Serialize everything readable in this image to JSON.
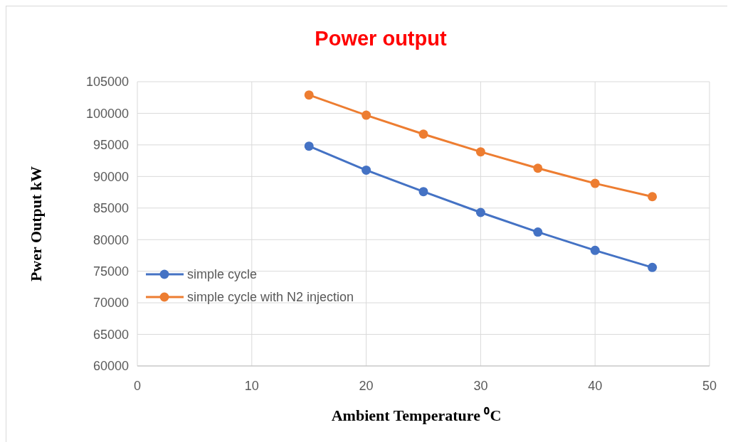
{
  "chart_data": {
    "type": "line",
    "title": "Power output",
    "xlabel": "Ambient Temperature ⁰C",
    "ylabel": "Pwer Output kW",
    "x": [
      15,
      20,
      25,
      30,
      35,
      40,
      45
    ],
    "series": [
      {
        "name": "simple cycle",
        "color": "#4472c4",
        "values": [
          94800,
          91000,
          87600,
          84300,
          81200,
          78300,
          75600
        ]
      },
      {
        "name": "simple cycle with N2 injection",
        "color": "#ed7d31",
        "values": [
          102900,
          99700,
          96700,
          93900,
          91300,
          88900,
          86800
        ]
      }
    ],
    "xlim": [
      0,
      50
    ],
    "xticks": [
      0,
      10,
      20,
      30,
      40,
      50
    ],
    "ylim": [
      60000,
      105000
    ],
    "yticks": [
      60000,
      65000,
      70000,
      75000,
      80000,
      85000,
      90000,
      95000,
      100000,
      105000
    ],
    "grid": true,
    "legend": "left",
    "marker": "circle",
    "line_style": "solid"
  }
}
